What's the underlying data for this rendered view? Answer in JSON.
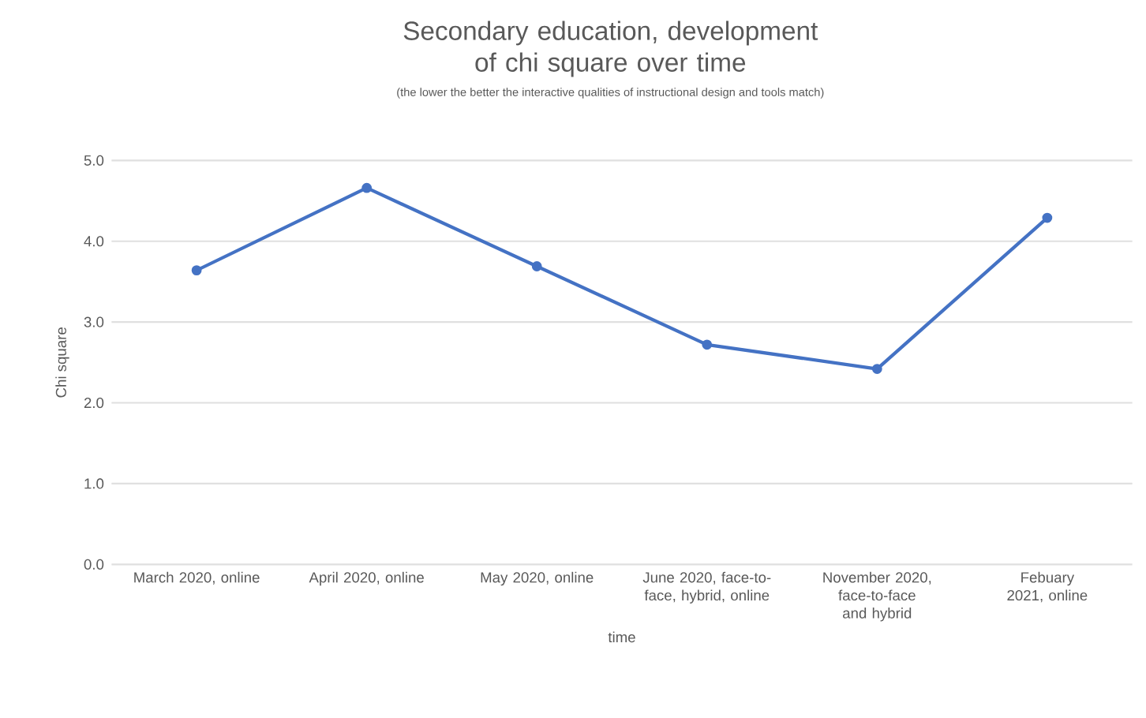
{
  "chart_data": {
    "type": "line",
    "title": "Secondary education, development of chi square over time",
    "subtitle": "(the lower the better the interactive qualities of instructional design and tools match)",
    "xlabel": "time",
    "ylabel": "Chi square",
    "categories": [
      "March 2020, online",
      "April 2020, online",
      "May 2020, online",
      "June 2020, face-to-face, hybrid, online",
      "November 2020, face-to-face and hybrid",
      "Febuary 2021, online"
    ],
    "series": [
      {
        "color": "#4472c4",
        "values": [
          3.64,
          4.66,
          3.69,
          2.72,
          2.42,
          4.29
        ]
      }
    ],
    "ylim": [
      0,
      5
    ],
    "yticks": [
      {
        "value": 0,
        "label": "0.0"
      },
      {
        "value": 1,
        "label": "1.0"
      },
      {
        "value": 2,
        "label": "2.0"
      },
      {
        "value": 3,
        "label": "3.0"
      },
      {
        "value": 4,
        "label": "4.0"
      },
      {
        "value": 5,
        "label": "5.0"
      }
    ],
    "grid": "y",
    "marker": "circle",
    "line_style": "solid"
  }
}
